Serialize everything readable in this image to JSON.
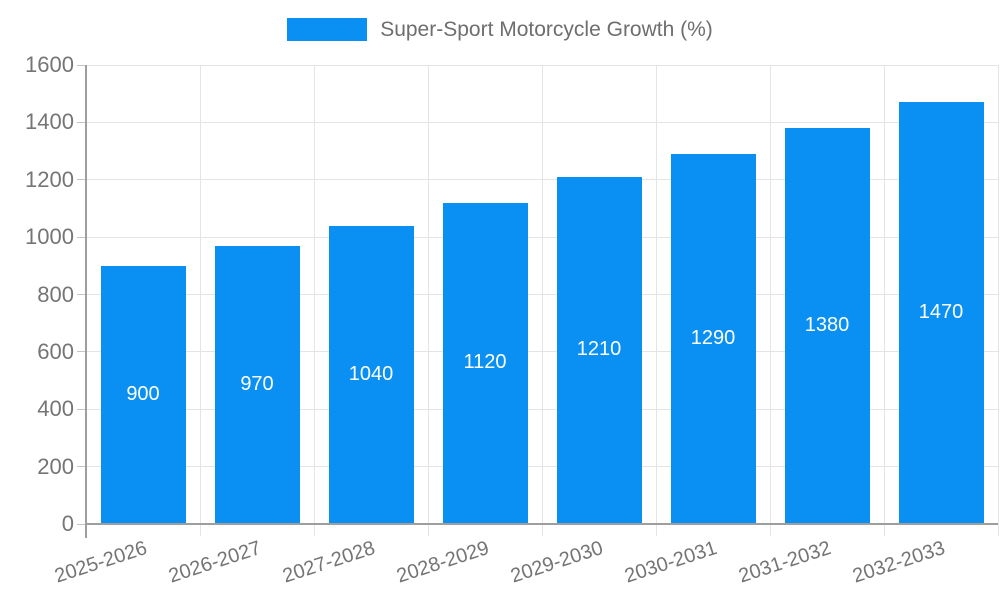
{
  "legend": {
    "label": "Super-Sport Motorcycle Growth (%)"
  },
  "chart_data": {
    "type": "bar",
    "title": "Super-Sport Motorcycle Growth (%)",
    "categories": [
      "2025-2026",
      "2026-2027",
      "2027-2028",
      "2028-2029",
      "2029-2030",
      "2030-2031",
      "2031-2032",
      "2032-2033"
    ],
    "values": [
      900,
      970,
      1040,
      1120,
      1210,
      1290,
      1380,
      1470
    ],
    "xlabel": "",
    "ylabel": "",
    "ylim": [
      0,
      1600
    ],
    "yticks": [
      0,
      200,
      400,
      600,
      800,
      1000,
      1200,
      1400,
      1600
    ],
    "grid": true,
    "legend_position": "top-center",
    "bar_labels_inside": true,
    "colors": {
      "bar": "#0a90f2",
      "bar_label": "#ffffff",
      "axis_text": "#757575",
      "legend_text": "#6e6e6e",
      "gridline": "#e4e4e4",
      "axis_line": "#9e9e9e",
      "tick": "#c4c4c4",
      "background": "#ffffff"
    }
  }
}
